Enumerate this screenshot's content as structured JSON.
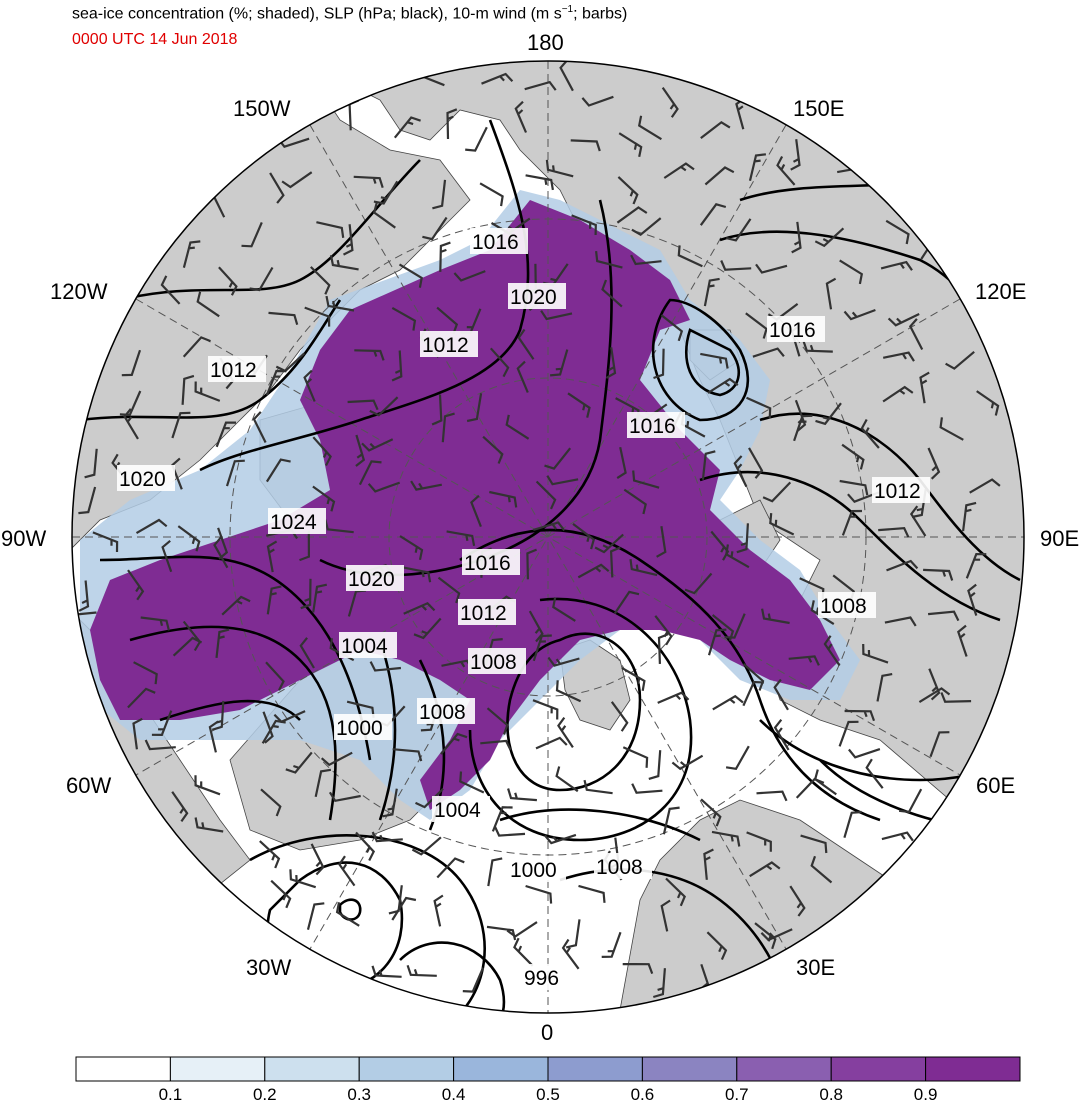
{
  "header": {
    "title_main": "sea-ice concentration (%; shaded), SLP (hPa; black), 10-m wind (m s",
    "title_sup": "−1",
    "title_end": "; barbs)",
    "valid_time": "0000 UTC 14 Jun 2018"
  },
  "longitudes": {
    "lon_180": "180",
    "lon_150w": "150W",
    "lon_150e": "150E",
    "lon_120w": "120W",
    "lon_120e": "120E",
    "lon_90w": "90W",
    "lon_90e": "90E",
    "lon_60w": "60W",
    "lon_60e": "60E",
    "lon_30w": "30W",
    "lon_30e": "30E",
    "lon_0": "0"
  },
  "slp_labels": [
    "1016",
    "1020",
    "1012",
    "1016",
    "1012",
    "1016",
    "1012",
    "1020",
    "1024",
    "1020",
    "1016",
    "1012",
    "1004",
    "1008",
    "1008",
    "1000",
    "1004",
    "1000",
    "1008",
    "996",
    "1008"
  ],
  "colorbar": {
    "ticks": [
      "0.1",
      "0.2",
      "0.3",
      "0.4",
      "0.5",
      "0.6",
      "0.7",
      "0.8",
      "0.9"
    ],
    "colors": [
      "#ffffff",
      "#e6f0f7",
      "#cde0ee",
      "#b3cde5",
      "#9ab6dc",
      "#8d9ccf",
      "#8b84c1",
      "#8a5fb0",
      "#853f9f",
      "#7f2c93"
    ]
  }
}
